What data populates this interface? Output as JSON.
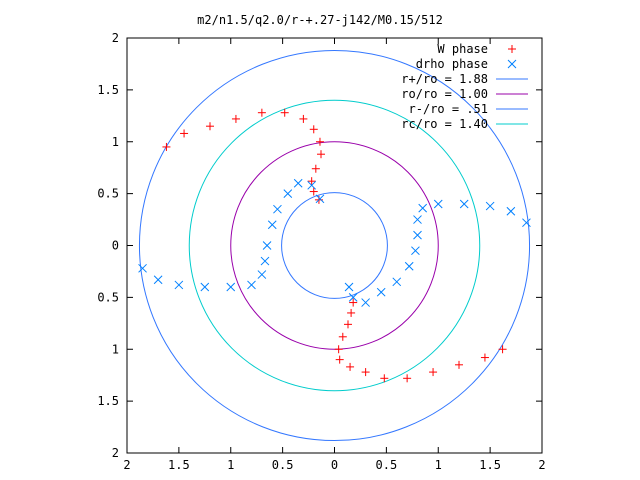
{
  "chart_data": {
    "type": "scatter",
    "title": "m2/n1.5/q2.0/r-+.27-j142/M0.15/512",
    "xlabel": "",
    "ylabel": "",
    "xlim": [
      -2,
      2
    ],
    "ylim": [
      -2,
      2
    ],
    "x_ticks": [
      -2,
      -1.5,
      -1,
      -0.5,
      0,
      0.5,
      1,
      1.5,
      2
    ],
    "y_ticks": [
      -2,
      -1.5,
      -1,
      -0.5,
      0,
      0.5,
      1,
      1.5,
      2
    ],
    "x_tick_labels": [
      "2",
      "1.5",
      "1",
      "0.5",
      "0",
      "0.5",
      "1",
      "1.5",
      "2"
    ],
    "y_tick_labels": [
      "2",
      "1.5",
      "1",
      "0.5",
      "0",
      "0.5",
      "1",
      "1.5",
      "2"
    ],
    "grid": false,
    "legend_position": "top-right",
    "legend": [
      {
        "label": "W phase",
        "kind": "marker",
        "marker": "plus",
        "color": "#ff0000"
      },
      {
        "label": "drho phase",
        "kind": "marker",
        "marker": "cross",
        "color": "#0080ff"
      },
      {
        "label": "r+/ro = 1.88",
        "kind": "line",
        "color": "#3377ff"
      },
      {
        "label": "ro/ro = 1.00",
        "kind": "line",
        "color": "#9900aa"
      },
      {
        "label": "r-/ro = .51",
        "kind": "line",
        "color": "#3377ff"
      },
      {
        "label": "rc/ro = 1.40",
        "kind": "line",
        "color": "#00cccc"
      }
    ],
    "circles": [
      {
        "name": "r+/ro = 1.88",
        "radius": 1.88,
        "color": "#3377ff"
      },
      {
        "name": "ro/ro = 1.00",
        "radius": 1.0,
        "color": "#9900aa"
      },
      {
        "name": "r-/ro = .51",
        "radius": 0.51,
        "color": "#3377ff"
      },
      {
        "name": "rc/ro = 1.40",
        "radius": 1.4,
        "color": "#00cccc"
      }
    ],
    "series": [
      {
        "name": "W phase",
        "marker": "plus",
        "color": "#ff0000",
        "segments": [
          [
            [
              -1.62,
              0.95
            ],
            [
              -1.45,
              1.08
            ],
            [
              -1.2,
              1.15
            ],
            [
              -0.95,
              1.22
            ],
            [
              -0.7,
              1.28
            ],
            [
              -0.48,
              1.28
            ],
            [
              -0.3,
              1.22
            ],
            [
              -0.2,
              1.12
            ],
            [
              -0.14,
              1.0
            ],
            [
              -0.13,
              0.88
            ],
            [
              -0.18,
              0.74
            ],
            [
              -0.22,
              0.62
            ],
            [
              -0.2,
              0.52
            ],
            [
              -0.15,
              0.44
            ]
          ],
          [
            [
              1.62,
              -1.0
            ],
            [
              1.45,
              -1.08
            ],
            [
              1.2,
              -1.15
            ],
            [
              0.95,
              -1.22
            ],
            [
              0.7,
              -1.28
            ],
            [
              0.48,
              -1.28
            ],
            [
              0.3,
              -1.22
            ],
            [
              0.15,
              -1.17
            ],
            [
              0.05,
              -1.1
            ],
            [
              0.04,
              -1.0
            ],
            [
              0.08,
              -0.88
            ],
            [
              0.13,
              -0.76
            ],
            [
              0.16,
              -0.65
            ],
            [
              0.18,
              -0.55
            ]
          ]
        ]
      },
      {
        "name": "drho phase",
        "marker": "cross",
        "color": "#0080ff",
        "segments": [
          [
            [
              -1.85,
              -0.22
            ],
            [
              -1.7,
              -0.33
            ],
            [
              -1.5,
              -0.38
            ],
            [
              -1.25,
              -0.4
            ],
            [
              -1.0,
              -0.4
            ],
            [
              -0.8,
              -0.38
            ],
            [
              -0.7,
              -0.28
            ],
            [
              -0.67,
              -0.15
            ],
            [
              -0.65,
              0.0
            ],
            [
              -0.6,
              0.2
            ],
            [
              -0.55,
              0.35
            ],
            [
              -0.45,
              0.5
            ],
            [
              -0.35,
              0.6
            ],
            [
              -0.22,
              0.58
            ],
            [
              -0.14,
              0.45
            ]
          ],
          [
            [
              1.85,
              0.22
            ],
            [
              1.7,
              0.33
            ],
            [
              1.5,
              0.38
            ],
            [
              1.25,
              0.4
            ],
            [
              1.0,
              0.4
            ],
            [
              0.85,
              0.36
            ],
            [
              0.8,
              0.25
            ],
            [
              0.8,
              0.1
            ],
            [
              0.78,
              -0.05
            ],
            [
              0.72,
              -0.2
            ],
            [
              0.6,
              -0.35
            ],
            [
              0.45,
              -0.45
            ],
            [
              0.3,
              -0.55
            ],
            [
              0.18,
              -0.5
            ],
            [
              0.14,
              -0.4
            ]
          ]
        ]
      }
    ]
  }
}
